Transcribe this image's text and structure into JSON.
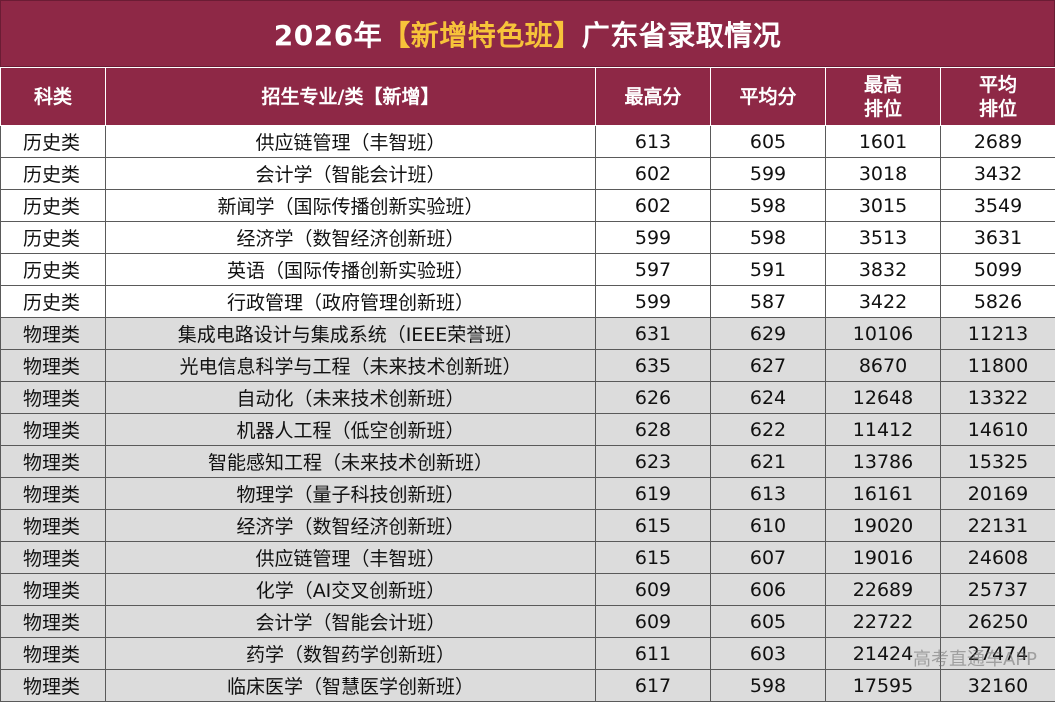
{
  "title": {
    "prefix": "2026年",
    "highlight": "【新增特色班】",
    "suffix": "广东省录取情况"
  },
  "headers": {
    "subject": "科类",
    "major": "招生专业/类【新增】",
    "max_score": "最高分",
    "avg_score": "平均分",
    "max_rank": "最高\n排位",
    "avg_rank": "平均\n排位"
  },
  "rows": [
    {
      "subject": "历史类",
      "major": "供应链管理（丰智班）",
      "max_score": "613",
      "avg_score": "605",
      "max_rank": "1601",
      "avg_rank": "2689"
    },
    {
      "subject": "历史类",
      "major": "会计学（智能会计班）",
      "max_score": "602",
      "avg_score": "599",
      "max_rank": "3018",
      "avg_rank": "3432"
    },
    {
      "subject": "历史类",
      "major": "新闻学（国际传播创新实验班）",
      "max_score": "602",
      "avg_score": "598",
      "max_rank": "3015",
      "avg_rank": "3549"
    },
    {
      "subject": "历史类",
      "major": "经济学（数智经济创新班）",
      "max_score": "599",
      "avg_score": "598",
      "max_rank": "3513",
      "avg_rank": "3631"
    },
    {
      "subject": "历史类",
      "major": "英语（国际传播创新实验班）",
      "max_score": "597",
      "avg_score": "591",
      "max_rank": "3832",
      "avg_rank": "5099"
    },
    {
      "subject": "历史类",
      "major": "行政管理（政府管理创新班）",
      "max_score": "599",
      "avg_score": "587",
      "max_rank": "3422",
      "avg_rank": "5826"
    },
    {
      "subject": "物理类",
      "major": "集成电路设计与集成系统（IEEE荣誉班）",
      "max_score": "631",
      "avg_score": "629",
      "max_rank": "10106",
      "avg_rank": "11213"
    },
    {
      "subject": "物理类",
      "major": "光电信息科学与工程（未来技术创新班）",
      "max_score": "635",
      "avg_score": "627",
      "max_rank": "8670",
      "avg_rank": "11800"
    },
    {
      "subject": "物理类",
      "major": "自动化（未来技术创新班）",
      "max_score": "626",
      "avg_score": "624",
      "max_rank": "12648",
      "avg_rank": "13322"
    },
    {
      "subject": "物理类",
      "major": "机器人工程（低空创新班）",
      "max_score": "628",
      "avg_score": "622",
      "max_rank": "11412",
      "avg_rank": "14610"
    },
    {
      "subject": "物理类",
      "major": "智能感知工程（未来技术创新班）",
      "max_score": "623",
      "avg_score": "621",
      "max_rank": "13786",
      "avg_rank": "15325"
    },
    {
      "subject": "物理类",
      "major": "物理学（量子科技创新班）",
      "max_score": "619",
      "avg_score": "613",
      "max_rank": "16161",
      "avg_rank": "20169"
    },
    {
      "subject": "物理类",
      "major": "经济学（数智经济创新班）",
      "max_score": "615",
      "avg_score": "610",
      "max_rank": "19020",
      "avg_rank": "22131"
    },
    {
      "subject": "物理类",
      "major": "供应链管理（丰智班）",
      "max_score": "615",
      "avg_score": "607",
      "max_rank": "19016",
      "avg_rank": "24608"
    },
    {
      "subject": "物理类",
      "major": "化学（AI交叉创新班）",
      "max_score": "609",
      "avg_score": "606",
      "max_rank": "22689",
      "avg_rank": "25737"
    },
    {
      "subject": "物理类",
      "major": "会计学（智能会计班）",
      "max_score": "609",
      "avg_score": "605",
      "max_rank": "22722",
      "avg_rank": "26250"
    },
    {
      "subject": "物理类",
      "major": "药学（数智药学创新班）",
      "max_score": "611",
      "avg_score": "603",
      "max_rank": "21424",
      "avg_rank": "27474"
    },
    {
      "subject": "物理类",
      "major": "临床医学（智慧医学创新班）",
      "max_score": "617",
      "avg_score": "598",
      "max_rank": "17595",
      "avg_rank": "32160"
    }
  ],
  "watermark": "高考直通车APP",
  "colors": {
    "header_bg": "#8e2846",
    "title_accent": "#f7c33a",
    "history_row": "#ffffff",
    "physics_row": "#dcdcdc"
  }
}
